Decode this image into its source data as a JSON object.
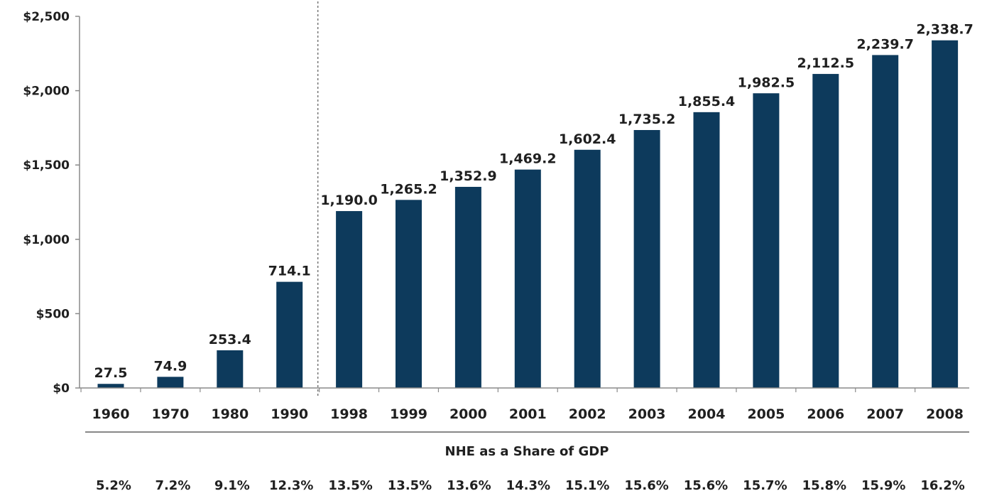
{
  "chart_data": {
    "type": "bar",
    "title": "",
    "xlabel": "",
    "ylabel": "",
    "ylim": [
      0,
      2500
    ],
    "yticks": [
      0,
      500,
      1000,
      1500,
      2000,
      2500
    ],
    "ytick_labels": [
      "$0",
      "$500",
      "$1,000",
      "$1,500",
      "$2,000",
      "$2,500"
    ],
    "categories": [
      "1960",
      "1970",
      "1980",
      "1990",
      "1998",
      "1999",
      "2000",
      "2001",
      "2002",
      "2003",
      "2004",
      "2005",
      "2006",
      "2007",
      "2008"
    ],
    "values": [
      27.5,
      74.9,
      253.4,
      714.1,
      1190.0,
      1265.2,
      1352.9,
      1469.2,
      1602.4,
      1735.2,
      1855.4,
      1982.5,
      2112.5,
      2239.7,
      2338.7
    ],
    "value_labels": [
      "27.5",
      "74.9",
      "253.4",
      "714.1",
      "1,190.0",
      "1,265.2",
      "1,352.9",
      "1,469.2",
      "1,602.4",
      "1,735.2",
      "1,855.4",
      "1,982.5",
      "2,112.5",
      "2,239.7",
      "2,338.7"
    ],
    "bar_color": "#0d3a5c",
    "divider_after_category": "1990",
    "share_title": "NHE as a Share of GDP",
    "share_values": [
      "5.2%",
      "7.2%",
      "9.1%",
      "12.3%",
      "13.5%",
      "13.5%",
      "13.6%",
      "14.3%",
      "15.1%",
      "15.6%",
      "15.6%",
      "15.7%",
      "15.8%",
      "15.9%",
      "16.2%"
    ],
    "grid": false,
    "legend": "none"
  }
}
